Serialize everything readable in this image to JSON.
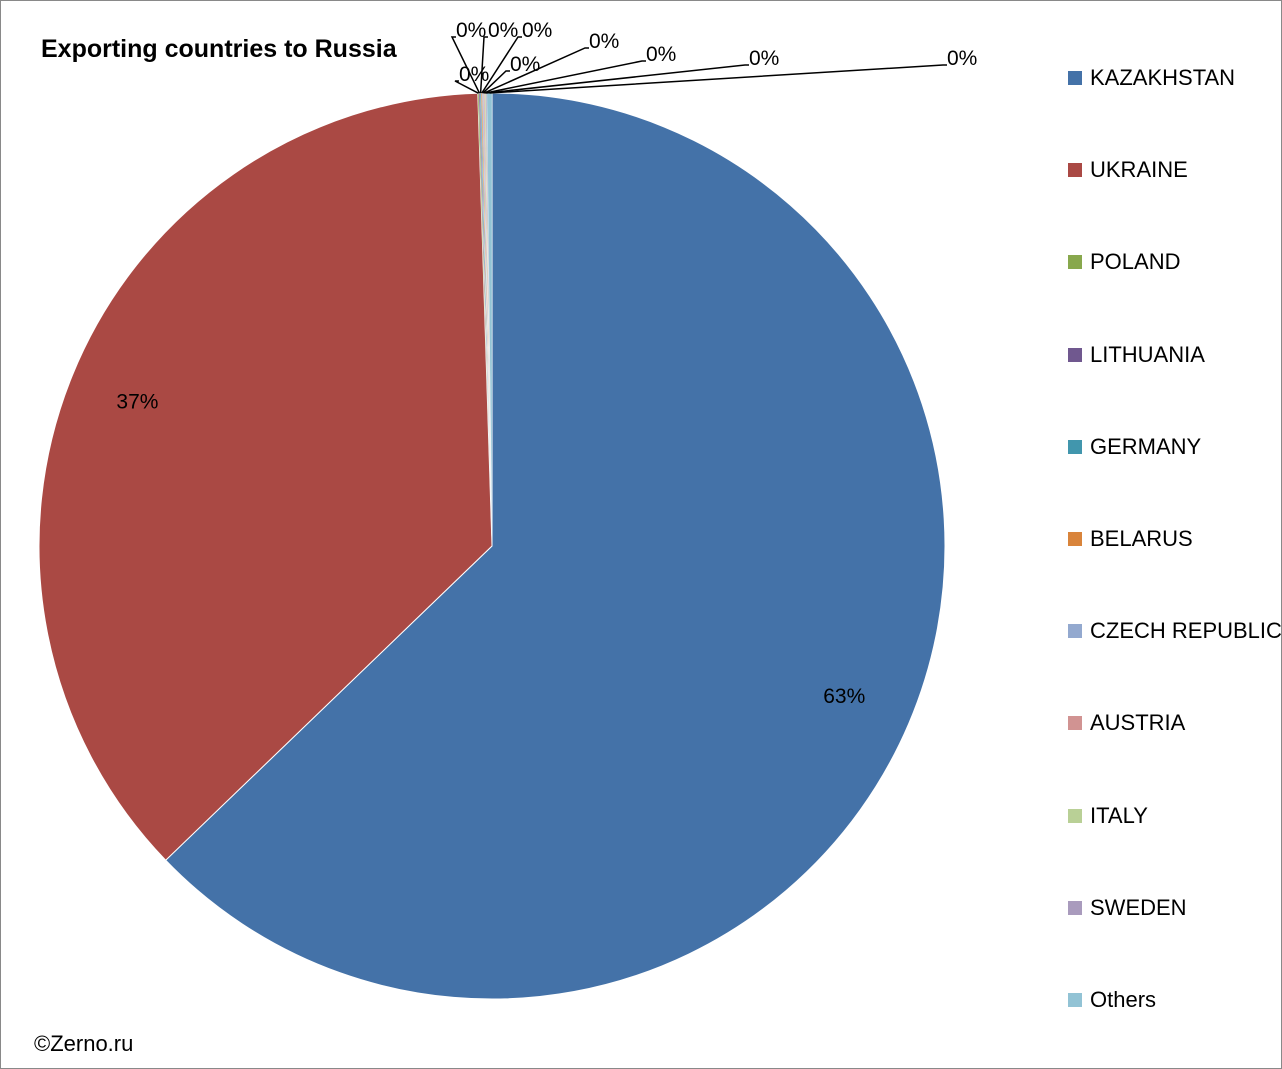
{
  "chart_data": {
    "type": "pie",
    "title": "Exporting countries to Russia",
    "categories": [
      "KAZAKHSTAN",
      "UKRAINE",
      "POLAND",
      "LITHUANIA",
      "GERMANY",
      "BELARUS",
      "CZECH REPUBLIC",
      "AUSTRIA",
      "ITALY",
      "SWEDEN",
      "Others"
    ],
    "values": [
      62.8,
      36.7,
      0.04,
      0.04,
      0.04,
      0.04,
      0.04,
      0.04,
      0.04,
      0.04,
      0.18
    ],
    "data_labels": [
      "63%",
      "37%",
      "0%",
      "0%",
      "0%",
      "0%",
      "0%",
      "0%",
      "0%",
      "0%",
      "0%"
    ],
    "colors": [
      "#4472a8",
      "#aa4944",
      "#88a84d",
      "#70588f",
      "#4196ad",
      "#d9843b",
      "#93a9cf",
      "#d19392",
      "#b9d096",
      "#a99bbd",
      "#92c3d5"
    ],
    "legend_position": "right",
    "start_angle_deg": 0,
    "direction": "clockwise"
  },
  "source_note": "©Zerno.ru"
}
